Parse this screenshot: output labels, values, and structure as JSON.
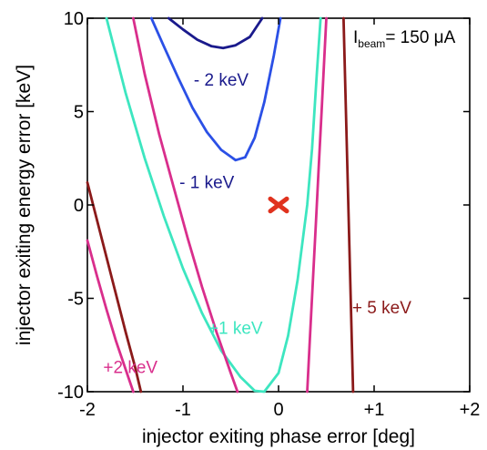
{
  "chart_data": {
    "type": "line",
    "title": "",
    "xlabel": "injector exiting phase error [deg]",
    "ylabel": "injector exiting energy error  [keV]",
    "xlim": [
      -2,
      2
    ],
    "ylim": [
      -10,
      10
    ],
    "xticks": [
      "-2",
      "-1",
      "0",
      "+1",
      "+2"
    ],
    "yticks": [
      "-10",
      "-5",
      "0",
      "5",
      "10"
    ],
    "annotation": {
      "I": "I",
      "sub": "beam",
      "text": "= 150 μA"
    },
    "marker": {
      "label": "×",
      "x": 0,
      "y": 0,
      "color": "#e0321e"
    },
    "series": [
      {
        "name": "- 2 keV",
        "color": "#1a1a8c",
        "points": [
          [
            -1.15,
            10
          ],
          [
            -1.0,
            9.4
          ],
          [
            -0.85,
            8.85
          ],
          [
            -0.7,
            8.5
          ],
          [
            -0.58,
            8.4
          ],
          [
            -0.45,
            8.55
          ],
          [
            -0.3,
            9.0
          ],
          [
            -0.17,
            10
          ]
        ]
      },
      {
        "name": "- 1 keV",
        "color": "#2b50e6",
        "points": [
          [
            -1.33,
            10
          ],
          [
            -1.2,
            8.5
          ],
          [
            -1.05,
            6.8
          ],
          [
            -0.9,
            5.2
          ],
          [
            -0.75,
            3.9
          ],
          [
            -0.6,
            2.95
          ],
          [
            -0.45,
            2.4
          ],
          [
            -0.35,
            2.55
          ],
          [
            -0.25,
            3.6
          ],
          [
            -0.15,
            5.5
          ],
          [
            -0.05,
            8.0
          ],
          [
            0.02,
            10
          ]
        ]
      },
      {
        "name": "+1 keV",
        "color": "#3de6c0",
        "points": [
          [
            -1.8,
            10
          ],
          [
            -1.6,
            6.0
          ],
          [
            -1.4,
            2.5
          ],
          [
            -1.2,
            -0.6
          ],
          [
            -1.0,
            -3.4
          ],
          [
            -0.8,
            -5.8
          ],
          [
            -0.6,
            -7.8
          ],
          [
            -0.4,
            -9.2
          ],
          [
            -0.25,
            -9.95
          ],
          [
            -0.15,
            -10
          ],
          [
            0.0,
            -9.0
          ],
          [
            0.1,
            -7.0
          ],
          [
            0.2,
            -4.0
          ],
          [
            0.3,
            0.0
          ],
          [
            0.35,
            3.0
          ],
          [
            0.4,
            7.0
          ],
          [
            0.44,
            10
          ]
        ]
      },
      {
        "name": "+2 keV",
        "color": "#d92e8c",
        "points": [
          [
            -2.0,
            -1.9
          ],
          [
            -1.9,
            -3.8
          ],
          [
            -1.8,
            -5.6
          ],
          [
            -1.7,
            -7.3
          ],
          [
            -1.6,
            -8.8
          ],
          [
            -1.52,
            -10
          ]
        ]
      },
      {
        "name": "+2 keV",
        "color": "#d92e8c",
        "points": [
          [
            -1.52,
            10
          ],
          [
            -1.4,
            7.0
          ],
          [
            -1.25,
            3.8
          ],
          [
            -1.1,
            1.0
          ],
          [
            -0.95,
            -1.8
          ],
          [
            -0.8,
            -4.4
          ],
          [
            -0.65,
            -6.8
          ],
          [
            -0.5,
            -9.0
          ],
          [
            -0.43,
            -10
          ]
        ]
      },
      {
        "name": "+2 keV",
        "color": "#d92e8c",
        "points": [
          [
            0.3,
            -10
          ],
          [
            0.33,
            -7.0
          ],
          [
            0.36,
            -4.0
          ],
          [
            0.39,
            -1.0
          ],
          [
            0.42,
            2.0
          ],
          [
            0.45,
            5.0
          ],
          [
            0.48,
            8.0
          ],
          [
            0.5,
            10
          ]
        ]
      },
      {
        "name": "+ 5 keV",
        "color": "#8b1a1a",
        "points": [
          [
            -2.0,
            1.2
          ],
          [
            -1.9,
            -0.8
          ],
          [
            -1.8,
            -2.8
          ],
          [
            -1.7,
            -4.8
          ],
          [
            -1.6,
            -6.8
          ],
          [
            -1.5,
            -8.7
          ],
          [
            -1.44,
            -10
          ]
        ]
      },
      {
        "name": "+ 5 keV",
        "color": "#8b1a1a",
        "points": [
          [
            0.68,
            10
          ],
          [
            0.7,
            6.0
          ],
          [
            0.72,
            2.0
          ],
          [
            0.74,
            -2.0
          ],
          [
            0.76,
            -6.0
          ],
          [
            0.78,
            -10
          ]
        ]
      }
    ],
    "labels": [
      {
        "text": "- 2 keV",
        "x": -0.6,
        "y": 6.4,
        "color": "#1a1a8c"
      },
      {
        "text": "- 1 keV",
        "x": -0.75,
        "y": 0.9,
        "color": "#1a1a8c"
      },
      {
        "text": "+1 keV",
        "x": -0.45,
        "y": -6.9,
        "color": "#3de6c0"
      },
      {
        "text": "+2 keV",
        "x": -1.55,
        "y": -9.0,
        "color": "#d92e8c"
      },
      {
        "text": "+ 5 keV",
        "x": 1.08,
        "y": -5.8,
        "color": "#8b1a1a"
      }
    ]
  }
}
